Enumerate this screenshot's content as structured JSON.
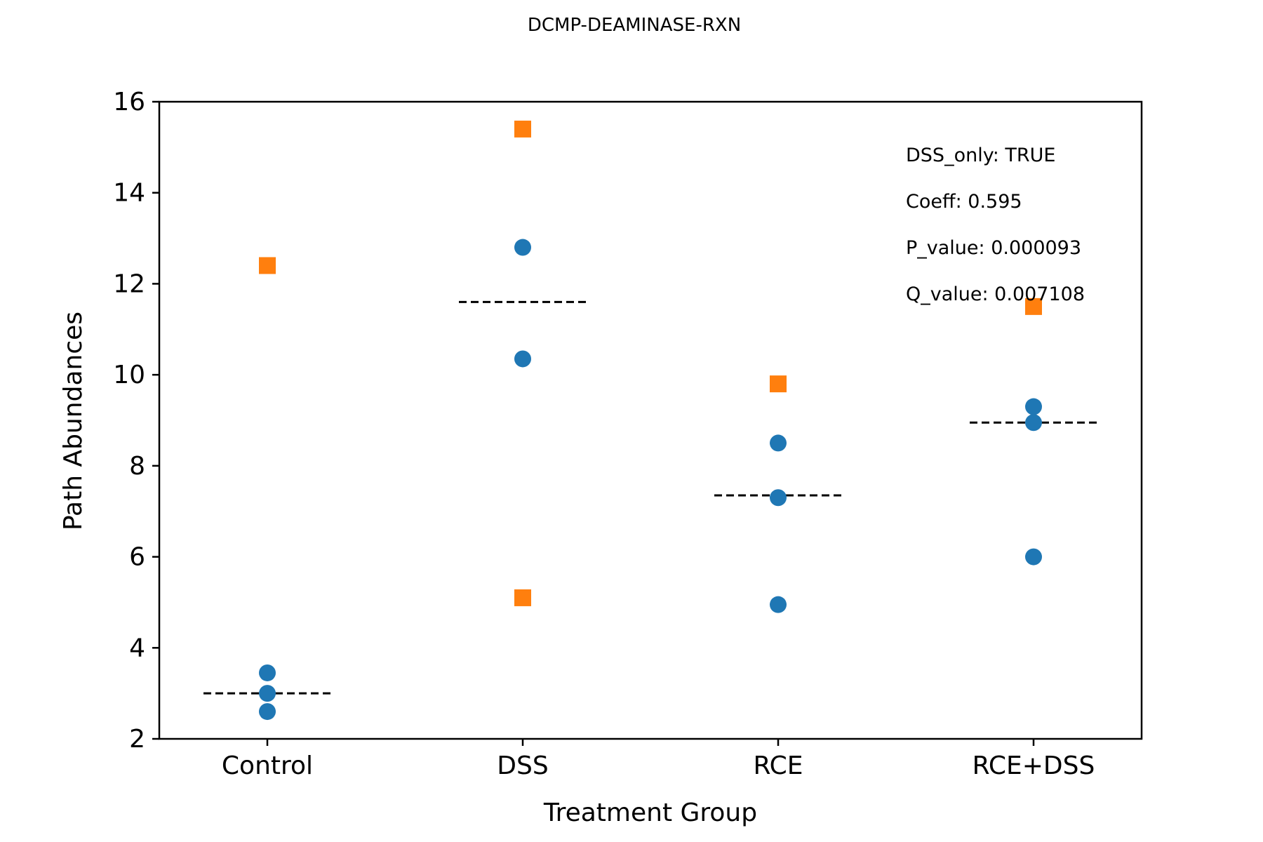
{
  "chart_data": {
    "type": "scatter",
    "title": "DCMP-DEAMINASE-RXN",
    "xlabel": "Treatment Group",
    "ylabel": "Path Abundances",
    "categories": [
      "Control",
      "DSS",
      "RCE",
      "RCE+DSS"
    ],
    "ylim": [
      2,
      16
    ],
    "yticks": [
      2,
      4,
      6,
      8,
      10,
      12,
      14,
      16
    ],
    "grid": false,
    "series": [
      {
        "marker": "circle",
        "color": "#1f77b4",
        "points": [
          {
            "category": "Control",
            "y": 3.45
          },
          {
            "category": "Control",
            "y": 3.0
          },
          {
            "category": "Control",
            "y": 2.6
          },
          {
            "category": "DSS",
            "y": 12.8
          },
          {
            "category": "DSS",
            "y": 10.35
          },
          {
            "category": "RCE",
            "y": 8.5
          },
          {
            "category": "RCE",
            "y": 7.3
          },
          {
            "category": "RCE",
            "y": 4.95
          },
          {
            "category": "RCE+DSS",
            "y": 9.3
          },
          {
            "category": "RCE+DSS",
            "y": 8.95
          },
          {
            "category": "RCE+DSS",
            "y": 6.0
          }
        ]
      },
      {
        "marker": "square",
        "color": "#ff7f0e",
        "points": [
          {
            "category": "Control",
            "y": 12.4
          },
          {
            "category": "DSS",
            "y": 15.4
          },
          {
            "category": "DSS",
            "y": 5.1
          },
          {
            "category": "RCE",
            "y": 9.8
          },
          {
            "category": "RCE+DSS",
            "y": 11.5
          }
        ]
      }
    ],
    "group_means": [
      {
        "category": "Control",
        "y": 3.0
      },
      {
        "category": "DSS",
        "y": 11.6
      },
      {
        "category": "RCE",
        "y": 7.35
      },
      {
        "category": "RCE+DSS",
        "y": 8.95
      }
    ],
    "mean_line_color": "#000000",
    "annotations": [
      "DSS_only: TRUE",
      "Coeff: 0.595",
      "P_value: 0.000093",
      "Q_value: 0.007108"
    ]
  }
}
